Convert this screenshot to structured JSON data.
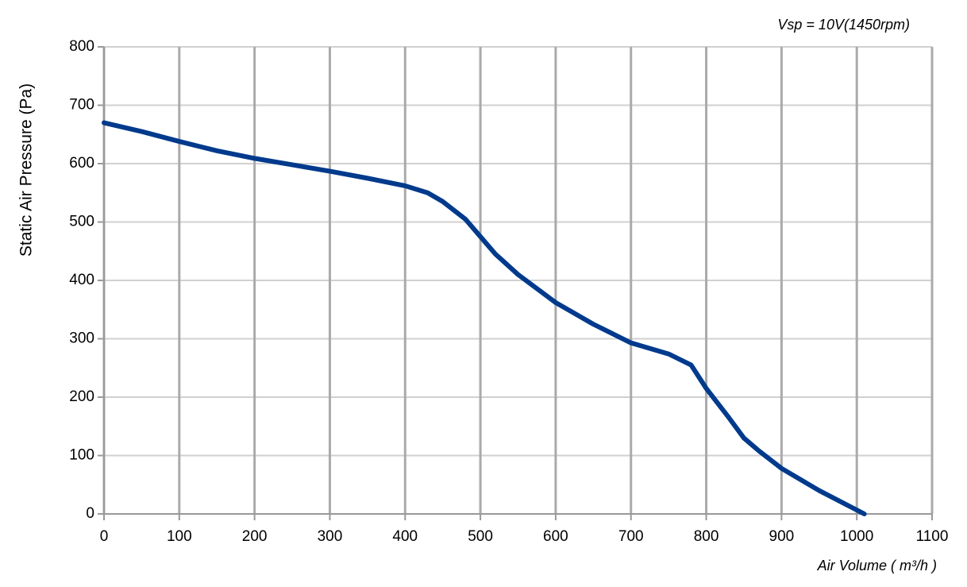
{
  "chart_data": {
    "type": "line",
    "title": "Vsp = 10V(1450rpm)",
    "x_label": "Air Volume ( m³/h )",
    "y_label": "Static Air Pressure  (Pa)",
    "x": [
      0,
      50,
      100,
      150,
      200,
      250,
      300,
      350,
      400,
      430,
      450,
      480,
      500,
      520,
      550,
      600,
      650,
      700,
      750,
      780,
      800,
      830,
      850,
      870,
      900,
      950,
      1010
    ],
    "series": [
      {
        "color": "#003a8c",
        "values": [
          670,
          655,
          638,
          622,
          609,
          598,
          587,
          575,
          562,
          550,
          535,
          505,
          475,
          445,
          410,
          362,
          325,
          293,
          274,
          255,
          215,
          165,
          130,
          108,
          78,
          40,
          0
        ]
      }
    ],
    "xlim": [
      0,
      1100
    ],
    "xticks": [
      0,
      100,
      200,
      300,
      400,
      500,
      600,
      700,
      800,
      900,
      1000,
      1100
    ],
    "ylim": [
      0,
      800
    ],
    "yticks": [
      0,
      100,
      200,
      300,
      400,
      500,
      600,
      700,
      800
    ],
    "grid": true
  }
}
